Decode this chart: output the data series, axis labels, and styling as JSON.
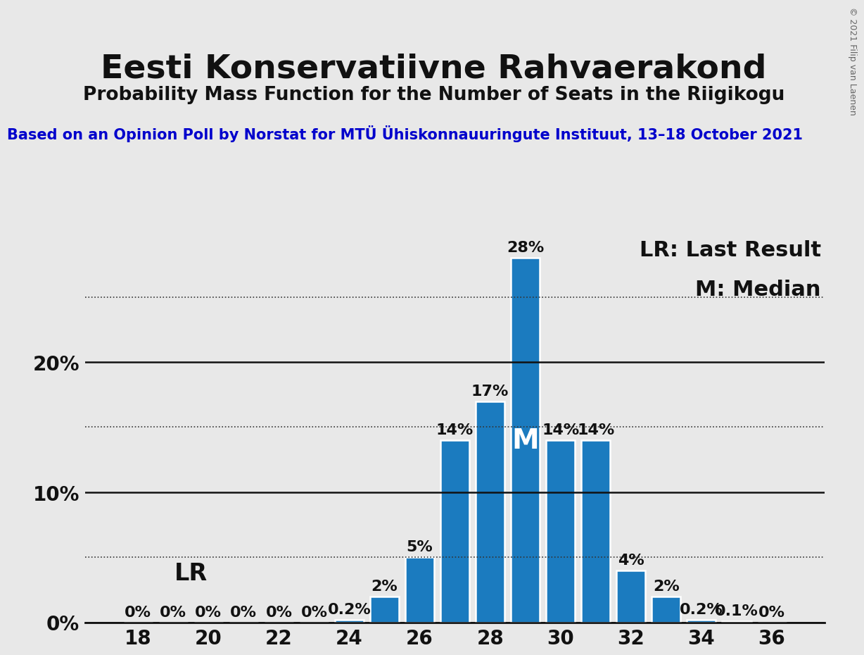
{
  "title": "Eesti Konservatiivne Rahvaerakond",
  "subtitle": "Probability Mass Function for the Number of Seats in the Riigikogu",
  "source_text": "Based on an Opinion Poll by Norstat for MTÜ Ühiskonnauuringute Instituut, 13–18 October 2021",
  "copyright_text": "© 2021 Filip van Laenen",
  "legend_lr": "LR: Last Result",
  "legend_m": "M: Median",
  "seats": [
    18,
    19,
    20,
    21,
    22,
    23,
    24,
    25,
    26,
    27,
    28,
    29,
    30,
    31,
    32,
    33,
    34,
    35,
    36
  ],
  "probabilities": [
    0.0,
    0.0,
    0.0,
    0.0,
    0.0,
    0.0,
    0.2,
    2.0,
    5.0,
    14.0,
    17.0,
    28.0,
    14.0,
    14.0,
    4.0,
    2.0,
    0.2,
    0.1,
    0.0
  ],
  "bar_color": "#1b7bbf",
  "background_color": "#e8e8e8",
  "last_result_seat": 19,
  "median_seat": 29,
  "lr_label": "LR",
  "m_label": "M",
  "ylim_max": 30,
  "yticks": [
    0,
    10,
    20
  ],
  "ytick_labels": [
    "0%",
    "10%",
    "20%"
  ],
  "dotted_lines": [
    5,
    15,
    25
  ],
  "title_fontsize": 34,
  "subtitle_fontsize": 19,
  "source_fontsize": 15,
  "tick_fontsize": 20,
  "bar_label_fontsize": 16,
  "legend_fontsize": 22,
  "lr_label_fontsize": 24,
  "m_label_fontsize": 28,
  "copyright_fontsize": 9
}
